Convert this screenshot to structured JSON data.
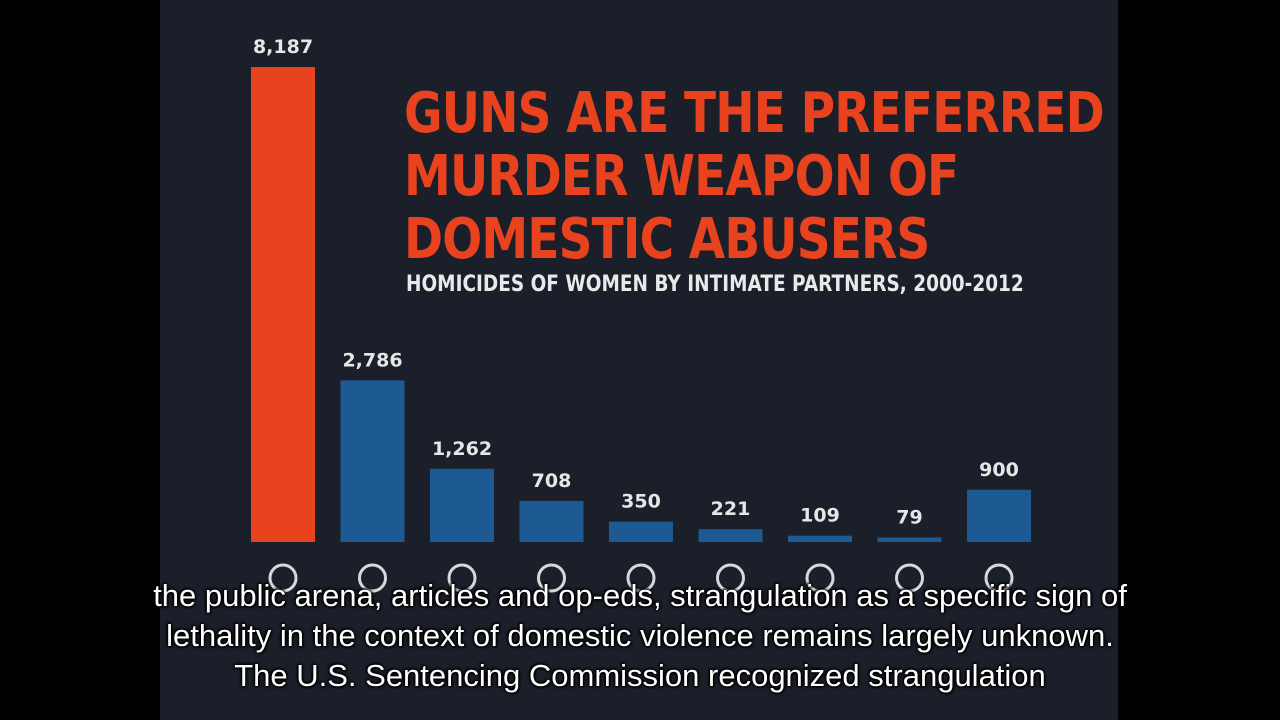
{
  "colors": {
    "highlight": "#e8421f",
    "bar": "#1d5a93",
    "background": "#1b1f29",
    "label": "#e6e6e6"
  },
  "chart_data": {
    "type": "bar",
    "title": "GUNS ARE THE PREFERRED MURDER WEAPON OF DOMESTIC ABUSERS",
    "title_lines": [
      "GUNS ARE THE PREFERRED",
      "MURDER WEAPON OF",
      "DOMESTIC ABUSERS"
    ],
    "subtitle": "HOMICIDES OF WOMEN BY INTIMATE PARTNERS, 2000-2012",
    "category_icons": [
      "gun-icon",
      "knife-icon",
      "fist-icon",
      "hammer-icon",
      "foot-icon",
      "poison-icon",
      "fire-icon",
      "drowning-icon",
      "other-icon"
    ],
    "values": [
      8187,
      2786,
      1262,
      708,
      350,
      221,
      109,
      79,
      900
    ],
    "value_labels": [
      "8,187",
      "2,786",
      "1,262",
      "708",
      "350",
      "221",
      "109",
      "79",
      "900"
    ],
    "highlight_index": 0,
    "ylim": [
      0,
      8187
    ],
    "grid": false,
    "legend": "none"
  },
  "captions": [
    "the public arena, articles and op-eds, strangulation as a specific sign of",
    "lethality in the context of domestic violence remains largely unknown.",
    "The U.S. Sentencing Commission recognized strangulation"
  ]
}
